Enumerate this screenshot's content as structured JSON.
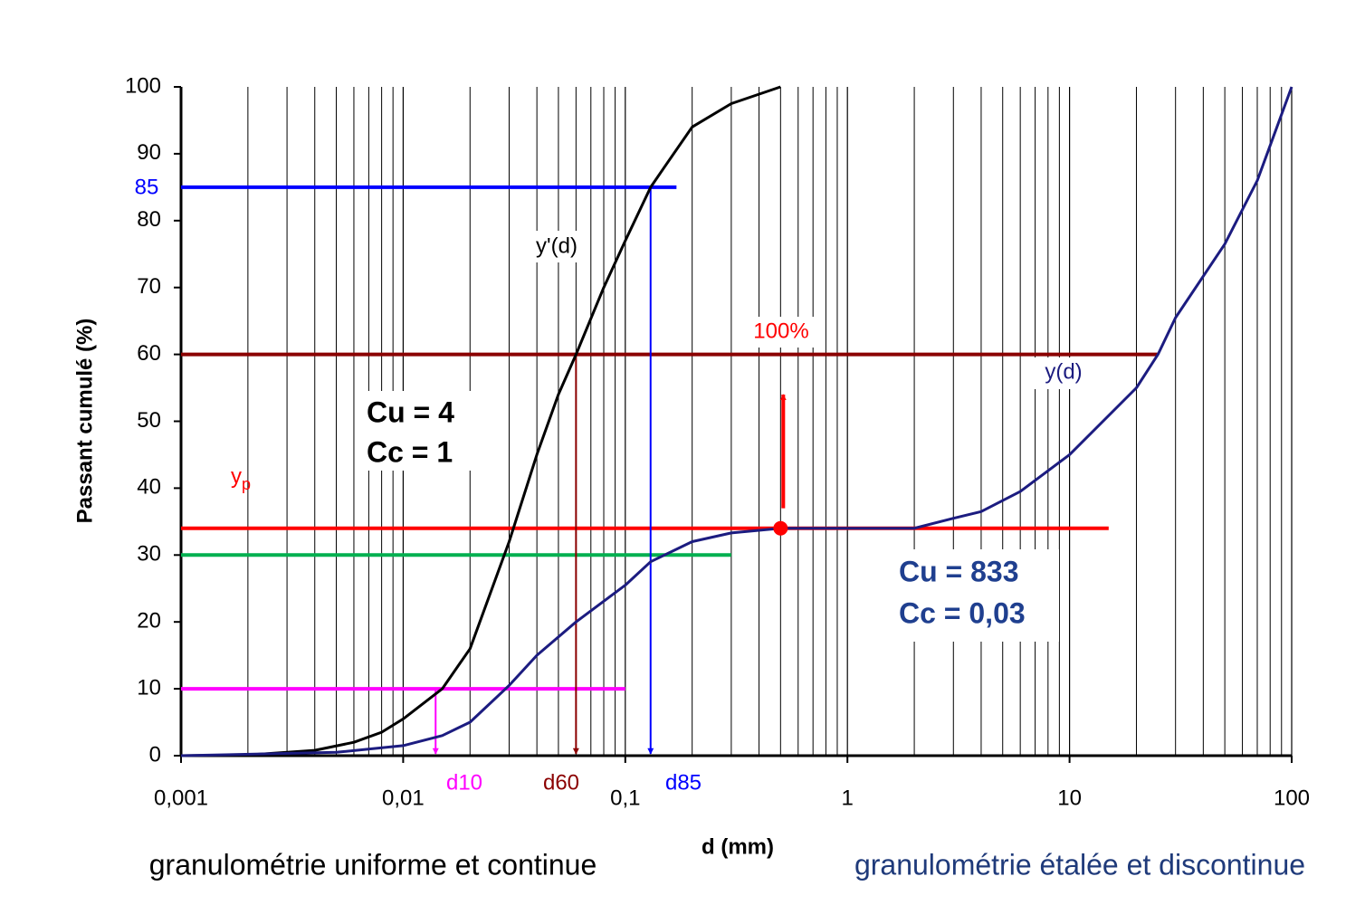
{
  "chart_data": {
    "type": "line",
    "xlabel": "d (mm)",
    "ylabel": "Passant cumulé (%)",
    "xscale": "log",
    "xlim": [
      0.001,
      100
    ],
    "ylim": [
      0,
      100
    ],
    "xticks": [
      {
        "value": 0.001,
        "label": "0,001"
      },
      {
        "value": 0.01,
        "label": "0,01"
      },
      {
        "value": 0.1,
        "label": "0,1"
      },
      1,
      10,
      100
    ],
    "yticks": [
      0,
      10,
      20,
      30,
      40,
      50,
      60,
      70,
      80,
      90,
      100
    ],
    "grid": true,
    "series": [
      {
        "name": "y'(d)",
        "color": "#000000",
        "x": [
          0.001,
          0.002,
          0.004,
          0.006,
          0.008,
          0.01,
          0.015,
          0.02,
          0.03,
          0.04,
          0.05,
          0.06,
          0.08,
          0.1,
          0.13,
          0.15,
          0.2,
          0.3,
          0.5
        ],
        "values": [
          0,
          0.1,
          0.8,
          2,
          3.5,
          5.5,
          10,
          16,
          32,
          45,
          54,
          60,
          70,
          77,
          85,
          88,
          94,
          97.5,
          100
        ]
      },
      {
        "name": "y(d)",
        "color": "#1c1c80",
        "x": [
          0.001,
          0.005,
          0.01,
          0.015,
          0.02,
          0.03,
          0.04,
          0.06,
          0.1,
          0.13,
          0.2,
          0.3,
          0.5,
          1,
          2,
          3,
          4,
          6,
          10,
          20,
          25,
          30,
          50,
          70,
          100
        ],
        "values": [
          0,
          0.5,
          1.5,
          3,
          5,
          10.5,
          15,
          20,
          25.5,
          29,
          32,
          33.3,
          34,
          34,
          34,
          35.5,
          36.5,
          39.5,
          45,
          55,
          60,
          65.5,
          76.5,
          86,
          100
        ]
      }
    ],
    "reference_lines": [
      {
        "y": 85,
        "x_end": 0.17,
        "color": "#0000ff",
        "label": "85"
      },
      {
        "y": 60,
        "x_end": 25,
        "color": "#8b0000"
      },
      {
        "y": 34,
        "x_end": 15,
        "color": "#ff0000"
      },
      {
        "y": 30,
        "x_end": 0.3,
        "color": "#00b050"
      },
      {
        "y": 10,
        "x_end": 0.1,
        "color": "#ff00ff"
      }
    ],
    "diameter_markers": [
      {
        "label": "d10",
        "x": 0.014,
        "from": 10,
        "color": "#ff00ff"
      },
      {
        "label": "d60",
        "x": 0.06,
        "from": 60,
        "color": "#8b0000"
      },
      {
        "label": "d85",
        "x": 0.13,
        "from": 85,
        "color": "#0000ff"
      }
    ],
    "point": {
      "x": 0.5,
      "y": 34,
      "color": "#ff0000"
    },
    "arrow": {
      "x": 0.5,
      "from": 37,
      "to": 54,
      "color": "#ff0000"
    },
    "annotations": {
      "percent": "100%",
      "yp": {
        "base": "y",
        "sub": "p"
      },
      "uniform": {
        "cu": "Cu = 4",
        "cc": "Cc = 1"
      },
      "spread": {
        "cu": "Cu = 833",
        "cc": "Cc = 0,03"
      },
      "caption_left": "granulométrie uniforme et continue",
      "caption_right": "granulométrie étalée et discontinue"
    }
  }
}
